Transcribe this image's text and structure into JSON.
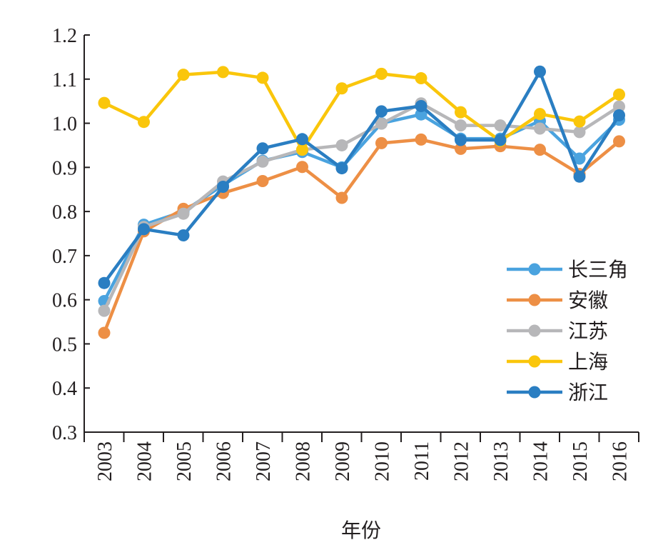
{
  "chart_data": {
    "type": "line",
    "title": "",
    "xlabel": "年份",
    "ylabel": "",
    "categories": [
      "2003",
      "2004",
      "2005",
      "2006",
      "2007",
      "2008",
      "2009",
      "2010",
      "2011",
      "2012",
      "2013",
      "2014",
      "2015",
      "2016"
    ],
    "yticks": [
      "0.3",
      "0.4",
      "0.5",
      "0.6",
      "0.7",
      "0.8",
      "0.9",
      "1.0",
      "1.1",
      "1.2"
    ],
    "ylim": [
      0.3,
      1.2
    ],
    "grid": false,
    "legend_position": "bottom-right",
    "series": [
      {
        "name": "长三角",
        "color": "#4aa3df",
        "values": [
          0.597,
          0.77,
          0.8,
          0.86,
          0.915,
          0.935,
          0.9,
          1.0,
          1.02,
          0.965,
          0.965,
          1.005,
          0.92,
          1.008
        ]
      },
      {
        "name": "安徽",
        "color": "#ed8f45",
        "values": [
          0.525,
          0.755,
          0.806,
          0.842,
          0.869,
          0.901,
          0.831,
          0.955,
          0.963,
          0.942,
          0.948,
          0.94,
          0.885,
          0.959
        ]
      },
      {
        "name": "江苏",
        "color": "#b7b7b9",
        "values": [
          0.575,
          0.765,
          0.795,
          0.868,
          0.913,
          0.94,
          0.95,
          0.999,
          1.045,
          0.995,
          0.995,
          0.988,
          0.98,
          1.038
        ]
      },
      {
        "name": "上海",
        "color": "#fac60b",
        "values": [
          1.046,
          1.003,
          1.11,
          1.116,
          1.103,
          0.94,
          1.079,
          1.112,
          1.102,
          1.025,
          0.96,
          1.021,
          1.004,
          1.065
        ]
      },
      {
        "name": "浙江",
        "color": "#2a7ec2",
        "values": [
          0.638,
          0.76,
          0.746,
          0.856,
          0.943,
          0.964,
          0.898,
          1.027,
          1.039,
          0.962,
          0.962,
          1.117,
          0.879,
          1.018
        ]
      }
    ]
  }
}
